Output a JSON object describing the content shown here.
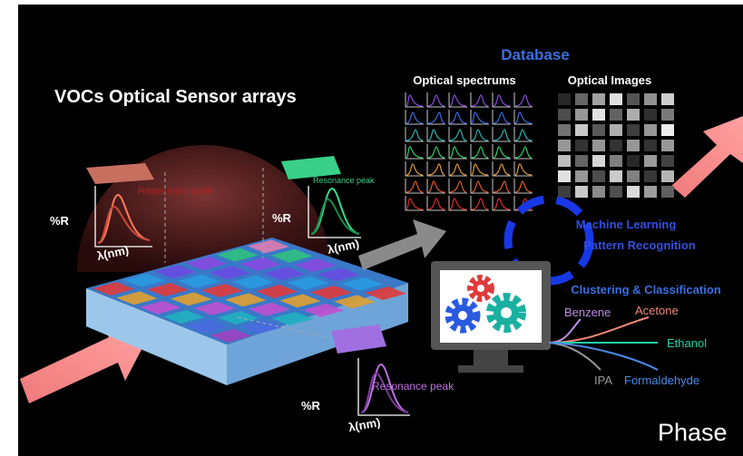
{
  "title": "VOCs Optical Sensor arrays",
  "database": {
    "title": "Database",
    "spectrums": "Optical spectrums",
    "images": "Optical Images"
  },
  "sensors": [
    {
      "label": "Resonance peak",
      "y_axis": "%R",
      "x_axis": "λ(nm)"
    },
    {
      "label": "Resonance peak",
      "y_axis": "%R",
      "x_axis": "λ(nm)"
    },
    {
      "label": "Resonance peak",
      "y_axis": "%R",
      "x_axis": "λ(nm)"
    }
  ],
  "machine_learning": [
    "Machine Learning",
    "Pattern Recognition"
  ],
  "classification": {
    "title": "Clustering & Classification",
    "classes": [
      "Benzene",
      "Acetone",
      "Ethanol",
      "IPA",
      "Formaldehyde"
    ]
  },
  "footer": "Phase"
}
